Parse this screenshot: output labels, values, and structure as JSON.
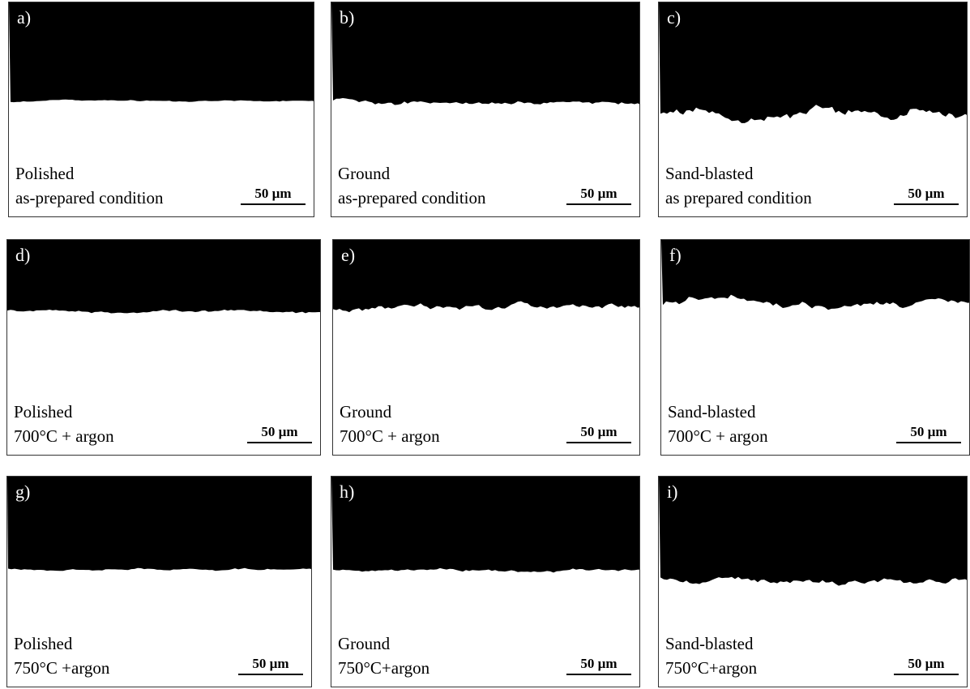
{
  "panels": [
    {
      "label": "a)",
      "line1": "Polished",
      "line2": "as-prepared condition",
      "scale": "50 µm"
    },
    {
      "label": "b)",
      "line1": "Ground",
      "line2": "as-prepared condition",
      "scale": "50 µm"
    },
    {
      "label": "c)",
      "line1": "Sand-blasted",
      "line2": "as prepared condition",
      "scale": "50 µm"
    },
    {
      "label": "d)",
      "line1": "Polished",
      "line2": "700°C + argon",
      "scale": "50 µm"
    },
    {
      "label": "e)",
      "line1": "Ground",
      "line2": "700°C + argon",
      "scale": "50 µm"
    },
    {
      "label": "f)",
      "line1": "Sand-blasted",
      "line2": "700°C + argon",
      "scale": "50 µm"
    },
    {
      "label": "g)",
      "line1": "Polished",
      "line2": "750°C +argon",
      "scale": "50 µm"
    },
    {
      "label": "h)",
      "line1": "Ground",
      "line2": "750°C+argon",
      "scale": "50 µm"
    },
    {
      "label": "i)",
      "line1": "Sand-blasted",
      "line2": "750°C+argon",
      "scale": "50 µm"
    }
  ]
}
